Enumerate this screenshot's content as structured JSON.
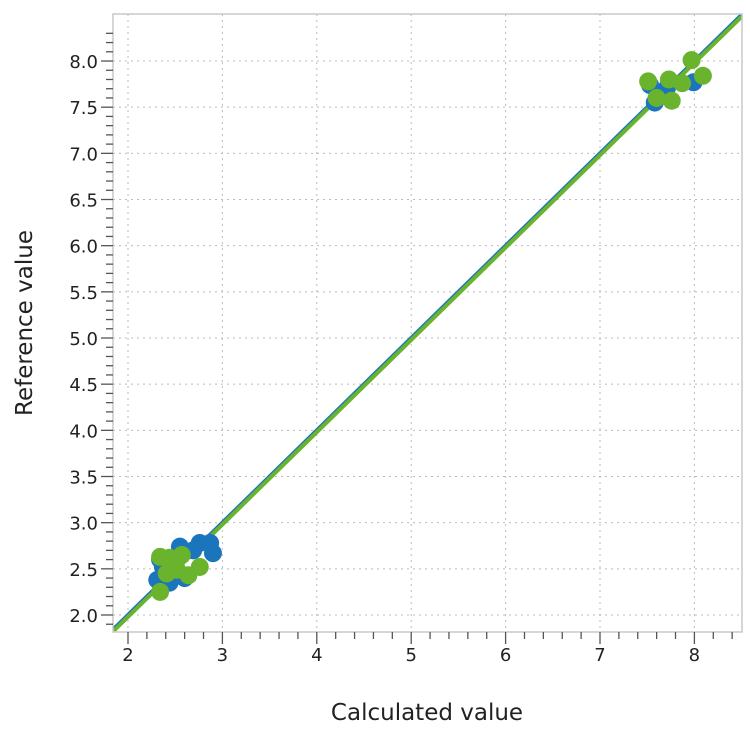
{
  "chart_data": {
    "type": "scatter",
    "title": "",
    "xlabel": "Calculated value",
    "ylabel": "Reference value",
    "xlim": [
      1.85,
      8.5
    ],
    "ylim": [
      1.85,
      8.5
    ],
    "x_ticks": [
      "2",
      "3",
      "4",
      "5",
      "6",
      "7",
      "8"
    ],
    "y_ticks": [
      "2.0",
      "2.5",
      "3.0",
      "3.5",
      "4.0",
      "4.5",
      "5.0",
      "5.5",
      "6.0",
      "6.5",
      "7.0",
      "7.5",
      "8.0"
    ],
    "grid": true,
    "series": [
      {
        "color": "#1a75bc",
        "points": [
          [
            2.76,
            2.78
          ],
          [
            2.87,
            2.78
          ],
          [
            2.9,
            2.67
          ],
          [
            2.31,
            2.38
          ],
          [
            2.44,
            2.35
          ],
          [
            2.55,
            2.74
          ],
          [
            2.69,
            2.7
          ],
          [
            2.37,
            2.52
          ],
          [
            2.34,
            2.6
          ],
          [
            2.6,
            2.4
          ],
          [
            7.53,
            7.74
          ],
          [
            7.71,
            7.71
          ],
          [
            7.99,
            7.77
          ],
          [
            7.58,
            7.55
          ]
        ],
        "fit_line": [
          [
            1.85,
            1.85
          ],
          [
            8.5,
            8.5
          ]
        ]
      },
      {
        "color": "#6ab42d",
        "points": [
          [
            2.34,
            2.63
          ],
          [
            2.44,
            2.62
          ],
          [
            2.57,
            2.65
          ],
          [
            2.52,
            2.49
          ],
          [
            2.41,
            2.45
          ],
          [
            2.64,
            2.43
          ],
          [
            2.76,
            2.52
          ],
          [
            2.34,
            2.25
          ],
          [
            7.51,
            7.78
          ],
          [
            7.73,
            7.8
          ],
          [
            7.87,
            7.76
          ],
          [
            8.09,
            7.84
          ],
          [
            7.97,
            8.01
          ],
          [
            7.6,
            7.6
          ],
          [
            7.76,
            7.57
          ]
        ],
        "fit_line": [
          [
            1.85,
            1.83
          ],
          [
            8.5,
            8.48
          ]
        ]
      }
    ]
  }
}
